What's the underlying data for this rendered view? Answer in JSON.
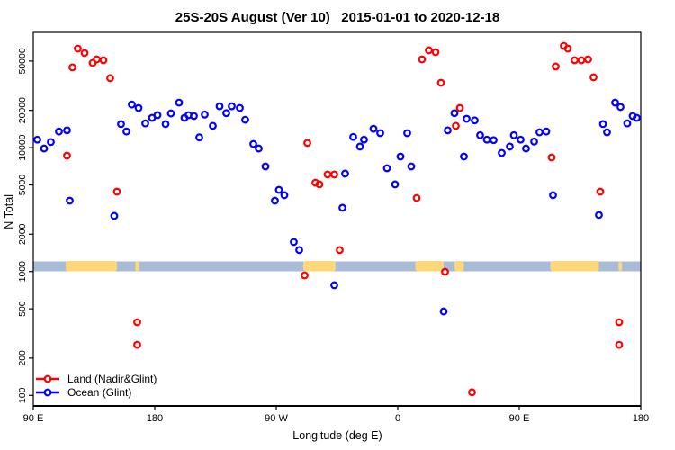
{
  "title": "25S-20S August (Ver 10)   2015-01-01 to 2020-12-18",
  "colors": {
    "land_series": "#ff0000",
    "ocean_series": "#0000ff",
    "map_strip_ocean": "#a8bcd8",
    "map_strip_land": "#fdd87b",
    "axis": "#000000"
  },
  "legend": {
    "entries": [
      {
        "label": "Land (Nadir&Glint)",
        "color": "#ff0000"
      },
      {
        "label": "Ocean (Glint)",
        "color": "#0000ff"
      }
    ]
  },
  "chart_data": {
    "type": "scatter",
    "title": "25S-20S August (Ver 10)   2015-01-01 to 2020-12-18",
    "xlabel": "Longitude (deg E)",
    "ylabel": "N Total",
    "x_axis": {
      "note": "longitude unwrapped 90E..180..90W..0..90E..180 (u = 90..540)",
      "ticks_u": [
        90,
        180,
        270,
        360,
        450,
        540
      ],
      "tick_labels": [
        "90 E",
        "180",
        "90 W",
        "0",
        "90 E",
        "180"
      ],
      "range_u": [
        90,
        540
      ]
    },
    "y_axis": {
      "scale": "log10",
      "ticks": [
        100,
        200,
        500,
        1000,
        2000,
        5000,
        10000,
        20000,
        50000
      ],
      "range": [
        82,
        85500
      ],
      "grid": false
    },
    "map_strip": {
      "value_center": 1000,
      "description": "world coastline band at 25S-20S drawn across N=1000",
      "patches_u": [
        [
          114,
          152,
          "australia"
        ],
        [
          165.5,
          168.5,
          "new-caledonia"
        ],
        [
          290,
          314,
          "south-america"
        ],
        [
          373,
          394,
          "africa"
        ],
        [
          402,
          409,
          "madagascar"
        ],
        [
          473,
          509,
          "australia-2"
        ],
        [
          523.5,
          526,
          "new-caledonia-2"
        ]
      ]
    },
    "series": [
      {
        "id": "land",
        "name": "Land (Nadir&Glint)",
        "color": "#ff0000",
        "points": [
          [
            123,
            63100
          ],
          [
            128,
            58100
          ],
          [
            119,
            44500
          ],
          [
            134,
            48300
          ],
          [
            137,
            51600
          ],
          [
            142,
            50800
          ],
          [
            147,
            36400
          ],
          [
            115,
            8610
          ],
          [
            152,
            4410
          ],
          [
            293,
            10900
          ],
          [
            299,
            5210
          ],
          [
            302,
            5050
          ],
          [
            308,
            6070
          ],
          [
            313,
            6070
          ],
          [
            317,
            1490
          ],
          [
            374,
            3920
          ],
          [
            378,
            51600
          ],
          [
            383,
            61100
          ],
          [
            388,
            59000
          ],
          [
            392,
            33400
          ],
          [
            403,
            15000
          ],
          [
            406,
            20900
          ],
          [
            474,
            8330
          ],
          [
            477,
            45200
          ],
          [
            483,
            66400
          ],
          [
            486,
            63100
          ],
          [
            491,
            50800
          ],
          [
            496,
            50800
          ],
          [
            501,
            51600
          ],
          [
            505,
            37000
          ],
          [
            510,
            4410
          ],
          [
            291,
            931
          ],
          [
            395,
            995
          ],
          [
            167,
            390
          ],
          [
            167,
            256
          ],
          [
            524,
            390
          ],
          [
            524,
            256
          ],
          [
            415,
            106
          ]
        ]
      },
      {
        "id": "ocean",
        "name": "Ocean (Glint)",
        "color": "#0000ff",
        "points": [
          [
            93,
            11600
          ],
          [
            98,
            9840
          ],
          [
            103,
            11100
          ],
          [
            109,
            13500
          ],
          [
            115,
            13800
          ],
          [
            117,
            3730
          ],
          [
            150,
            2810
          ],
          [
            155,
            15500
          ],
          [
            159,
            13500
          ],
          [
            163,
            22300
          ],
          [
            168,
            20900
          ],
          [
            173,
            15700
          ],
          [
            178,
            17400
          ],
          [
            182,
            18300
          ],
          [
            188,
            15500
          ],
          [
            192,
            18900
          ],
          [
            198,
            23100
          ],
          [
            202,
            17400
          ],
          [
            205,
            18300
          ],
          [
            209,
            18000
          ],
          [
            213,
            12100
          ],
          [
            217,
            18500
          ],
          [
            223,
            15000
          ],
          [
            228,
            21600
          ],
          [
            233,
            19000
          ],
          [
            237,
            21600
          ],
          [
            243,
            20900
          ],
          [
            247,
            16800
          ],
          [
            253,
            10700
          ],
          [
            257,
            9840
          ],
          [
            262,
            7050
          ],
          [
            269,
            3730
          ],
          [
            272,
            4560
          ],
          [
            276,
            4130
          ],
          [
            283,
            1730
          ],
          [
            287,
            1490
          ],
          [
            313,
            775
          ],
          [
            319,
            3270
          ],
          [
            321,
            6170
          ],
          [
            327,
            12200
          ],
          [
            332,
            10200
          ],
          [
            335,
            11600
          ],
          [
            342,
            14200
          ],
          [
            347,
            13100
          ],
          [
            352,
            6820
          ],
          [
            358,
            5050
          ],
          [
            362,
            8470
          ],
          [
            367,
            13100
          ],
          [
            370,
            7050
          ],
          [
            394,
            476
          ],
          [
            397,
            13800
          ],
          [
            402,
            19000
          ],
          [
            409,
            8470
          ],
          [
            411,
            17100
          ],
          [
            417,
            16600
          ],
          [
            421,
            12600
          ],
          [
            426,
            11600
          ],
          [
            431,
            11500
          ],
          [
            437,
            9060
          ],
          [
            443,
            10200
          ],
          [
            446,
            12600
          ],
          [
            451,
            11600
          ],
          [
            455,
            9840
          ],
          [
            461,
            11200
          ],
          [
            465,
            13300
          ],
          [
            470,
            13500
          ],
          [
            475,
            4130
          ],
          [
            509,
            2860
          ],
          [
            512,
            15500
          ],
          [
            515,
            13300
          ],
          [
            521,
            23100
          ],
          [
            525,
            21300
          ],
          [
            530,
            15700
          ],
          [
            534,
            18000
          ],
          [
            537,
            17400
          ]
        ]
      }
    ]
  }
}
